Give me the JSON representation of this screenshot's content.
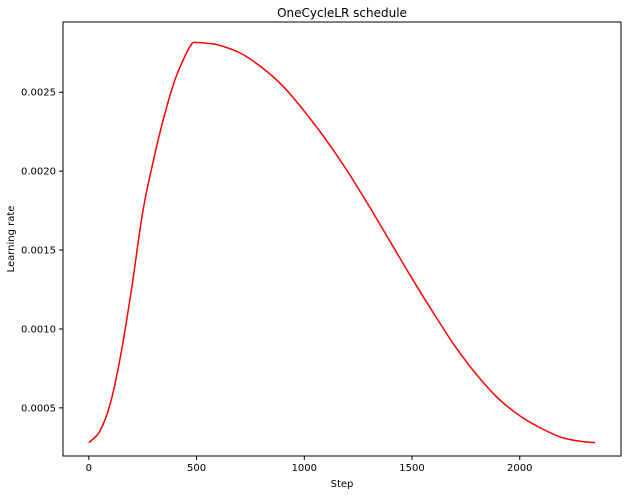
{
  "chart_data": {
    "type": "line",
    "title": "OneCycleLR schedule",
    "xlabel": "Step",
    "ylabel": "Learning rate",
    "xlim": [
      -120,
      2470
    ],
    "ylim": [
      0.000195,
      0.002945
    ],
    "xticks": [
      0,
      500,
      1000,
      1500,
      2000
    ],
    "xtick_labels": [
      "0",
      "500",
      "1000",
      "1500",
      "2000"
    ],
    "yticks": [
      0.0005,
      0.001,
      0.0015,
      0.002,
      0.0025
    ],
    "ytick_labels": [
      "0.0005",
      "0.0010",
      "0.0015",
      "0.0020",
      "0.0025"
    ],
    "grid": false,
    "legend": "none",
    "series": [
      {
        "color": "#ff0000",
        "x": [
          0,
          50,
          100,
          150,
          200,
          250,
          300,
          350,
          400,
          450,
          480,
          500,
          550,
          600,
          700,
          800,
          900,
          1000,
          1100,
          1200,
          1300,
          1400,
          1500,
          1600,
          1700,
          1800,
          1900,
          2000,
          2100,
          2200,
          2300,
          2350
        ],
        "y": [
          0.00028,
          0.00035,
          0.00053,
          0.00085,
          0.00127,
          0.00174,
          0.00207,
          0.00235,
          0.00258,
          0.00274,
          0.00281,
          0.002815,
          0.00281,
          0.0028,
          0.00275,
          0.00266,
          0.00254,
          0.00238,
          0.0022,
          0.002,
          0.00178,
          0.00155,
          0.00132,
          0.0011,
          0.00089,
          0.00071,
          0.00056,
          0.00045,
          0.00037,
          0.00031,
          0.000285,
          0.00028
        ]
      }
    ]
  }
}
